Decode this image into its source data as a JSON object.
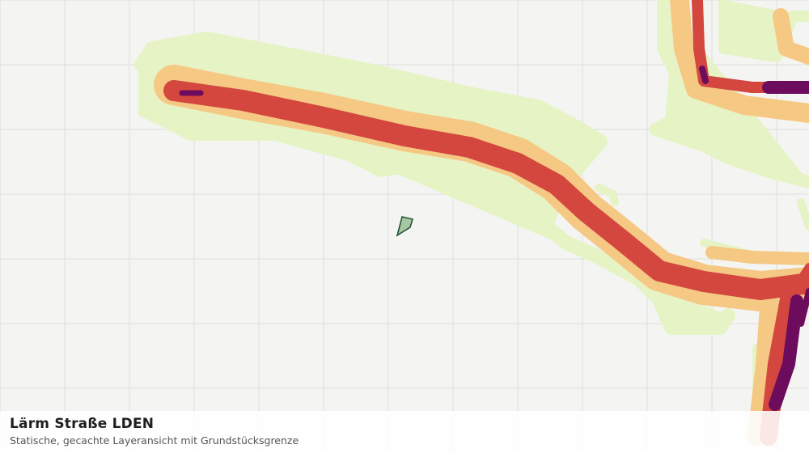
{
  "caption": {
    "title": "Lärm Straße LDEN",
    "subtitle": "Statische, gecachte Layeransicht mit Grundstücksgrenze"
  },
  "legend_colors": {
    "background": "#f4f5f3",
    "grid": "#dedfdc",
    "band_very_low": "#e6f3c5",
    "band_low": "#f5c884",
    "band_high": "#d3473f",
    "band_very_high": "#6d0c5c",
    "parcel_fill": "#a7c6a3",
    "parcel_stroke": "#1d4f2a"
  }
}
